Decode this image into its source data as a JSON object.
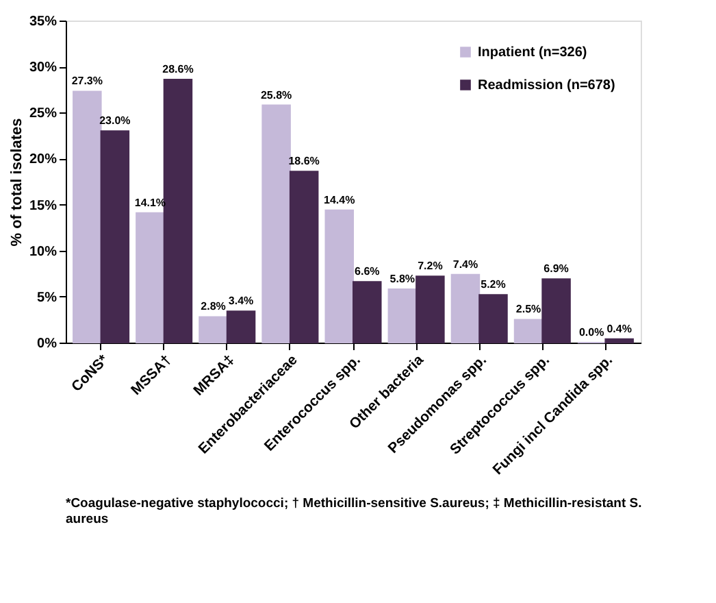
{
  "chart_data": {
    "type": "bar",
    "ylabel": "% of total isolates",
    "categories": [
      "CoNS*",
      "MSSA†",
      "MRSA‡",
      "Enterobacteriaceae",
      "Enterococcus spp.",
      "Other bacteria",
      "Pseudomonas spp.",
      "Streptococcus spp.",
      "Fungi incl Candida spp."
    ],
    "series": [
      {
        "name": "Inpatient (n=326)",
        "color": "#c5b9d9",
        "values": [
          27.3,
          14.1,
          2.8,
          25.8,
          14.4,
          5.8,
          7.4,
          2.5,
          0.0
        ],
        "value_labels": [
          "27.3%",
          "14.1%",
          "2.8%",
          "25.8%",
          "14.4%",
          "5.8%",
          "7.4%",
          "2.5%",
          "0.0%"
        ]
      },
      {
        "name": "Readmission (n=678)",
        "color": "#45294f",
        "values": [
          23.0,
          28.6,
          3.4,
          18.6,
          6.6,
          7.2,
          5.2,
          6.9,
          0.4
        ],
        "value_labels": [
          "23.0%",
          "28.6%",
          "3.4%",
          "18.6%",
          "6.6%",
          "7.2%",
          "5.2%",
          "6.9%",
          "0.4%"
        ]
      }
    ],
    "ylim": [
      0,
      35
    ],
    "yticks": [
      {
        "value": 0,
        "label": "0%"
      },
      {
        "value": 5,
        "label": "5%"
      },
      {
        "value": 10,
        "label": "10%"
      },
      {
        "value": 15,
        "label": "15%"
      },
      {
        "value": 20,
        "label": "20%"
      },
      {
        "value": 25,
        "label": "25%"
      },
      {
        "value": 30,
        "label": "30%"
      },
      {
        "value": 35,
        "label": "35%"
      }
    ],
    "grid": false,
    "legend": "top right",
    "annotations": [
      "*Coagulase-negative staphylococci; † Methicillin-sensitive S.aureus; ‡ Methicillin-resistant S. aureus"
    ]
  }
}
